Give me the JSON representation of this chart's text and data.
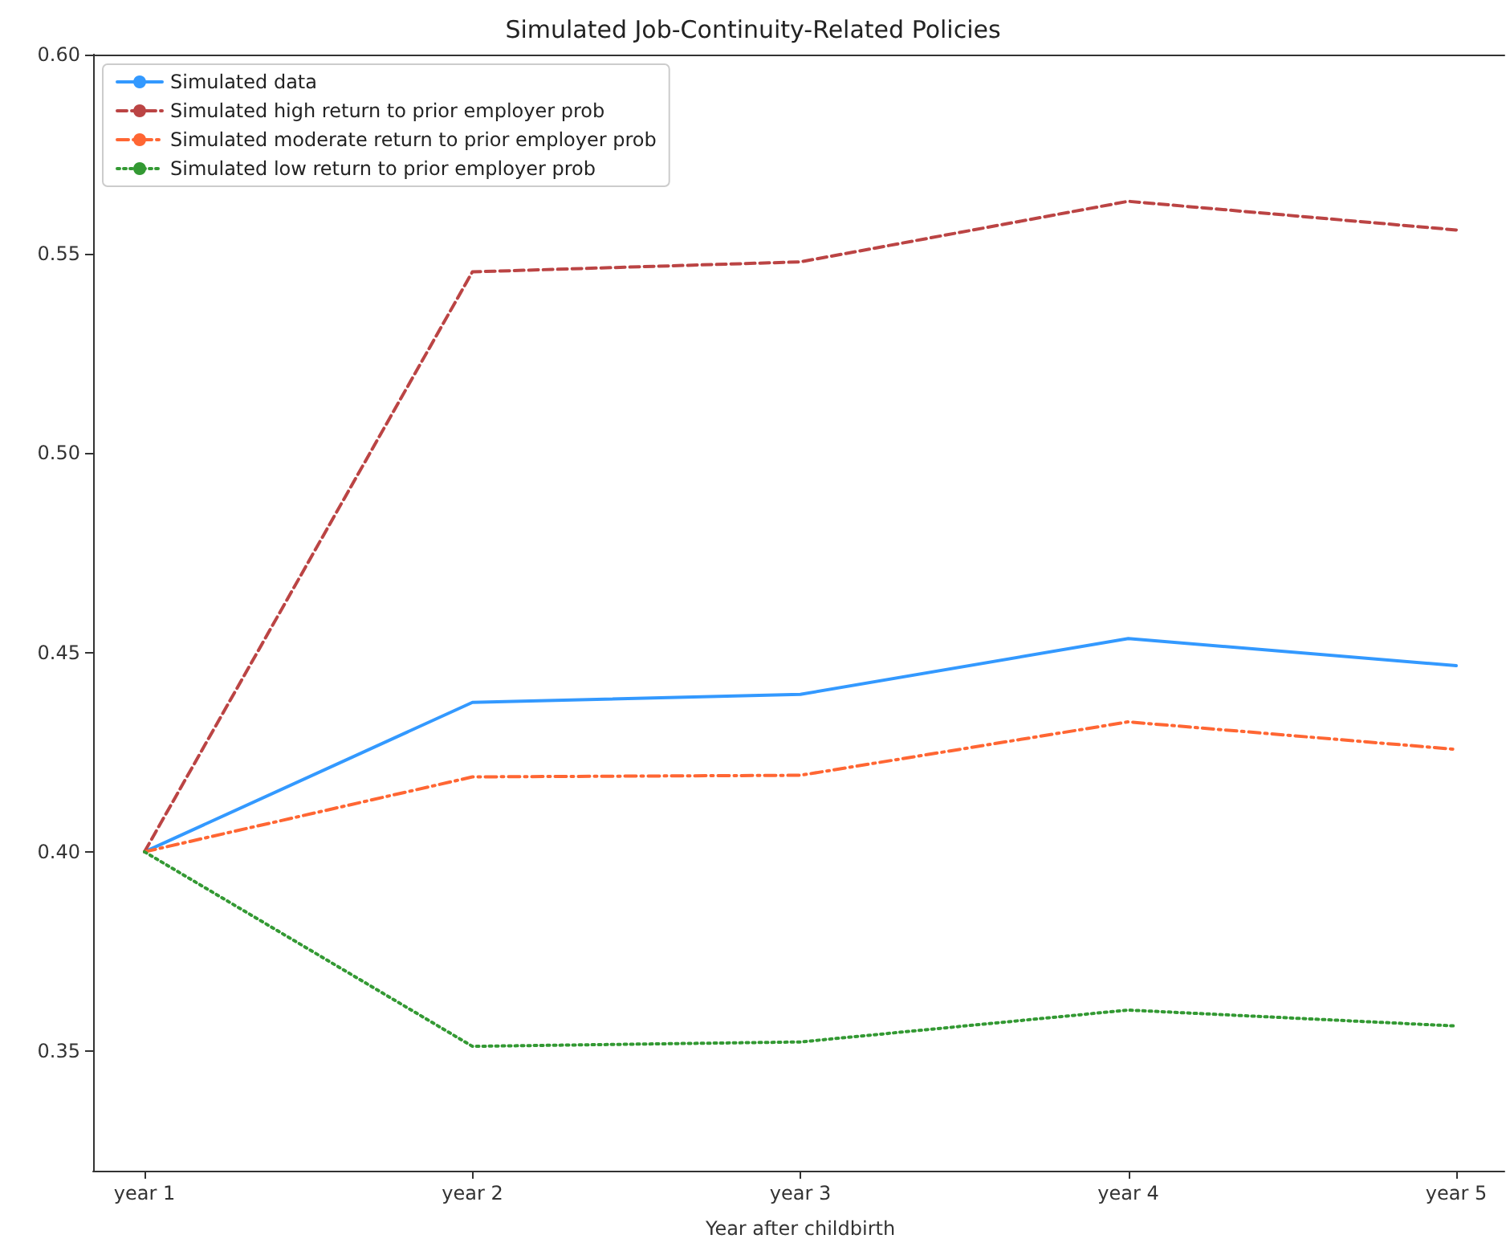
{
  "chart_data": {
    "type": "line",
    "title": "Simulated Job-Continuity-Related Policies",
    "xlabel": "Year after childbirth",
    "categories": [
      "year 1",
      "year 2",
      "year 3",
      "year 4",
      "year 5"
    ],
    "series": [
      {
        "name": "Simulated data",
        "color": "#3399ff",
        "line_style": "solid",
        "values": [
          0.4,
          0.4375,
          0.4395,
          0.4535,
          0.4467
        ]
      },
      {
        "name": "Simulated high return to prior employer prob",
        "color": "#bb4444",
        "line_style": "dashed",
        "values": [
          0.4,
          0.5455,
          0.548,
          0.5632,
          0.556
        ]
      },
      {
        "name": "Simulated moderate return to prior employer prob",
        "color": "#ff6633",
        "line_style": "dashdot",
        "values": [
          0.4,
          0.4188,
          0.4192,
          0.4326,
          0.4257
        ]
      },
      {
        "name": "Simulated low return to prior employer prob",
        "color": "#339933",
        "line_style": "dotted",
        "values": [
          0.4,
          0.3512,
          0.3523,
          0.3603,
          0.3563
        ]
      }
    ],
    "ylim": [
      0.32,
      0.6
    ],
    "yticks": [
      0.35,
      {
        "value": 0.4,
        "label": "0.40"
      },
      0.45,
      {
        "value": 0.5,
        "label": "0.50"
      },
      0.55,
      {
        "value": 0.6,
        "label": "0.60"
      }
    ],
    "grid": false,
    "legend": "top left",
    "marker": "none"
  }
}
